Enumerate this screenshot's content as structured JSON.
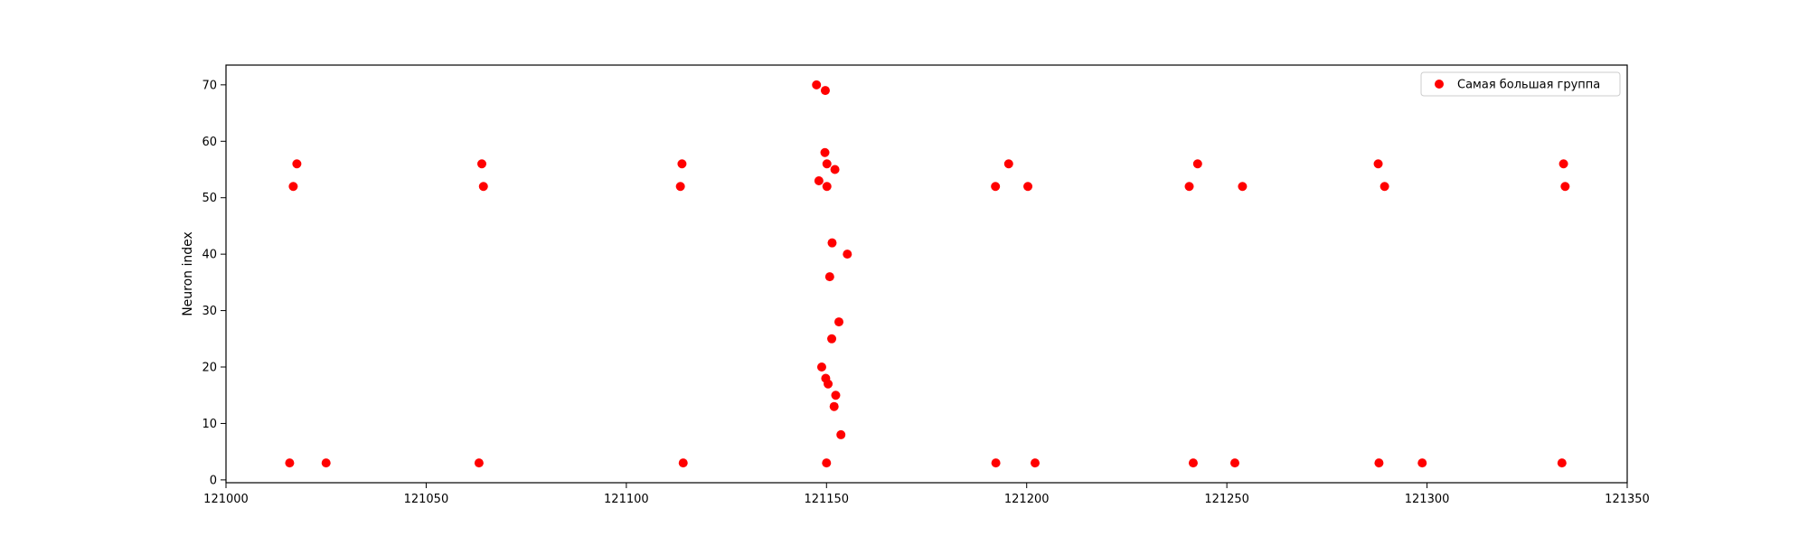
{
  "chart_data": {
    "type": "scatter",
    "xlabel": "",
    "ylabel": "Neuron index",
    "xlim": [
      121000,
      121350
    ],
    "ylim": [
      -0.5,
      73.5
    ],
    "xticks": [
      121000,
      121050,
      121100,
      121150,
      121200,
      121250,
      121300,
      121350
    ],
    "yticks": [
      0,
      10,
      20,
      30,
      40,
      50,
      60,
      70
    ],
    "xtick_labels": [
      "121000",
      "121050",
      "121100",
      "121150",
      "121200",
      "121250",
      "121300",
      "121350"
    ],
    "ytick_labels": [
      "0",
      "10",
      "20",
      "30",
      "40",
      "50",
      "60",
      "70"
    ],
    "grid": false,
    "legend": {
      "position": "top-right"
    },
    "series": [
      {
        "name": "Самая большая группа",
        "color": "#ff0000",
        "points": [
          [
            121015.9,
            3
          ],
          [
            121016.8,
            52
          ],
          [
            121017.7,
            56
          ],
          [
            121025.0,
            3
          ],
          [
            121063.2,
            3
          ],
          [
            121064.3,
            52
          ],
          [
            121063.9,
            56
          ],
          [
            121113.5,
            52
          ],
          [
            121113.9,
            56
          ],
          [
            121114.2,
            3
          ],
          [
            121147.5,
            70
          ],
          [
            121148.1,
            53
          ],
          [
            121148.8,
            20
          ],
          [
            121149.6,
            58
          ],
          [
            121149.7,
            69
          ],
          [
            121149.8,
            18
          ],
          [
            121150.0,
            3
          ],
          [
            121150.1,
            56
          ],
          [
            121150.1,
            52
          ],
          [
            121150.4,
            17
          ],
          [
            121150.8,
            36
          ],
          [
            121151.3,
            25
          ],
          [
            121151.4,
            42
          ],
          [
            121151.9,
            13
          ],
          [
            121152.1,
            55
          ],
          [
            121152.3,
            15
          ],
          [
            121153.1,
            28
          ],
          [
            121153.6,
            8
          ],
          [
            121155.2,
            40
          ],
          [
            121192.2,
            52
          ],
          [
            121192.3,
            3
          ],
          [
            121195.5,
            56
          ],
          [
            121200.3,
            52
          ],
          [
            121202.1,
            3
          ],
          [
            121240.6,
            52
          ],
          [
            121241.6,
            3
          ],
          [
            121242.7,
            56
          ],
          [
            121252.0,
            3
          ],
          [
            121253.9,
            52
          ],
          [
            121287.8,
            56
          ],
          [
            121288.0,
            3
          ],
          [
            121289.4,
            52
          ],
          [
            121298.8,
            3
          ],
          [
            121333.7,
            3
          ],
          [
            121334.1,
            56
          ],
          [
            121334.5,
            52
          ]
        ]
      }
    ]
  }
}
